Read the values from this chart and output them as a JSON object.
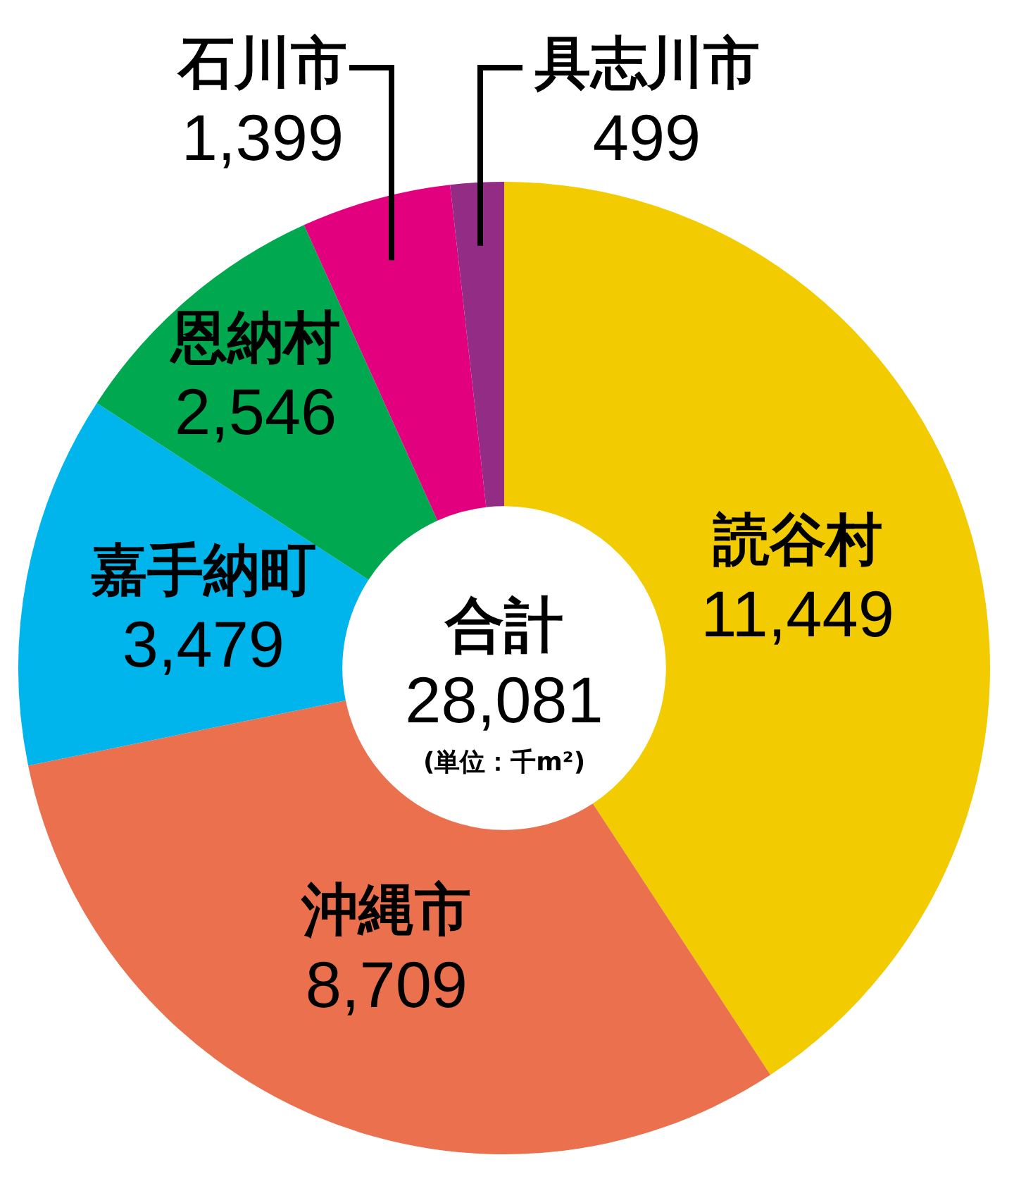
{
  "chart_data": {
    "type": "donut",
    "categories": [
      "読谷村",
      "沖縄市",
      "嘉手納町",
      "恩納村",
      "石川市",
      "具志川市"
    ],
    "values": [
      11449,
      8709,
      3479,
      2546,
      1399,
      499
    ],
    "colors": [
      "#f2cb00",
      "#eb714e",
      "#00b4ec",
      "#00a84f",
      "#e2007f",
      "#932c84"
    ],
    "value_labels": [
      "11,449",
      "8,709",
      "3,479",
      "2,546",
      "1,399",
      "499"
    ],
    "annotations": [
      "合計",
      "28,081",
      "(単位：千m²)"
    ]
  }
}
